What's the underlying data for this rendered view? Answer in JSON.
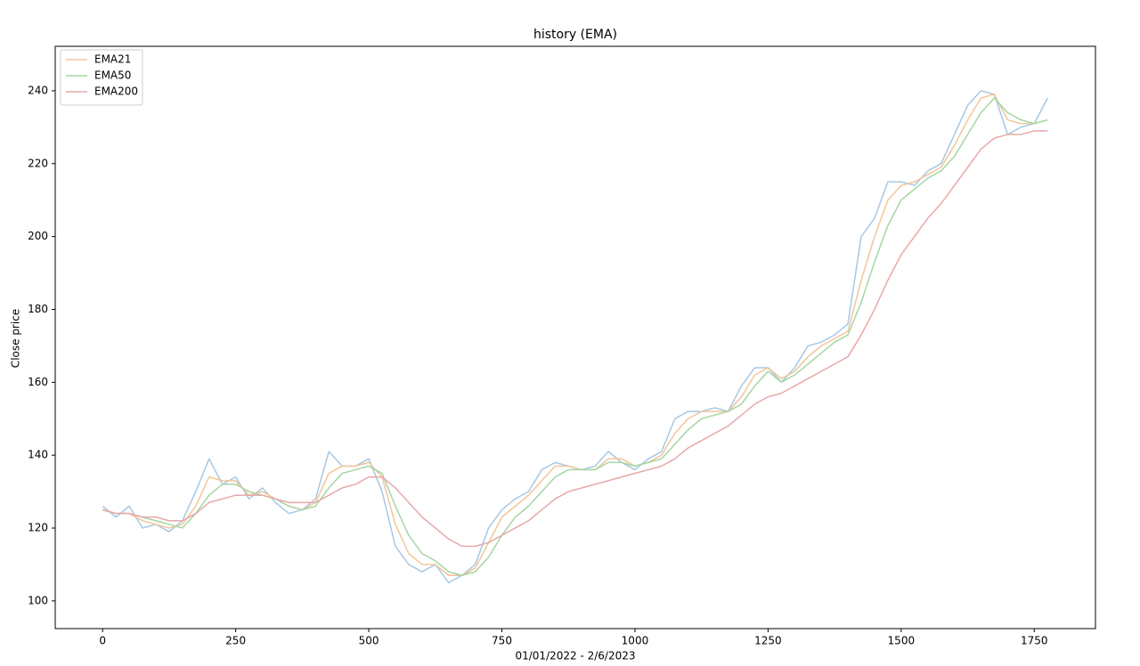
{
  "chart_data": {
    "type": "line",
    "title": "history (EMA)",
    "x_label": "01/01/2022 - 2/6/2023",
    "y_label": "Close price",
    "x": [
      0,
      25,
      50,
      75,
      100,
      125,
      150,
      175,
      200,
      225,
      250,
      275,
      300,
      325,
      350,
      375,
      400,
      425,
      450,
      475,
      500,
      525,
      550,
      575,
      600,
      625,
      650,
      675,
      700,
      725,
      750,
      775,
      800,
      825,
      850,
      875,
      900,
      925,
      950,
      975,
      1000,
      1025,
      1050,
      1075,
      1100,
      1125,
      1150,
      1175,
      1200,
      1225,
      1250,
      1275,
      1300,
      1325,
      1350,
      1375,
      1400,
      1425,
      1450,
      1475,
      1500,
      1525,
      1550,
      1575,
      1600,
      1625,
      1650,
      1675,
      1700,
      1725,
      1750,
      1775
    ],
    "series": [
      {
        "color": "#a6c8e4",
        "values": [
          126,
          123,
          126,
          120,
          121,
          119,
          122,
          130,
          139,
          132,
          134,
          128,
          131,
          127,
          124,
          125,
          128,
          141,
          137,
          137,
          139,
          130,
          115,
          110,
          108,
          110,
          105,
          107,
          110,
          120,
          125,
          128,
          130,
          136,
          138,
          137,
          136,
          137,
          141,
          138,
          136,
          139,
          141,
          150,
          152,
          152,
          153,
          152,
          159,
          164,
          164,
          160,
          164,
          170,
          171,
          173,
          176,
          200,
          205,
          215,
          215,
          214,
          218,
          220,
          228,
          236,
          240,
          239,
          228,
          230,
          231,
          238
        ]
      },
      {
        "name": "EMA21",
        "color": "#f3c599",
        "values": [
          125,
          124,
          124,
          122,
          121,
          120,
          121,
          126,
          134,
          133,
          133,
          129,
          130,
          128,
          126,
          125,
          127,
          135,
          137,
          137,
          138,
          134,
          121,
          113,
          110,
          110,
          107,
          107,
          109,
          116,
          123,
          126,
          129,
          133,
          137,
          137,
          136,
          136,
          139,
          139,
          137,
          138,
          140,
          146,
          150,
          152,
          152,
          152,
          156,
          162,
          164,
          161,
          163,
          167,
          170,
          172,
          174,
          188,
          200,
          210,
          214,
          215,
          217,
          219,
          225,
          232,
          238,
          239,
          232,
          231,
          231,
          232
        ]
      },
      {
        "name": "EMA50",
        "color": "#a5d6a5",
        "values": [
          125,
          124,
          124,
          123,
          122,
          121,
          120,
          124,
          129,
          132,
          132,
          130,
          129,
          128,
          126,
          125,
          126,
          131,
          135,
          136,
          137,
          135,
          126,
          118,
          113,
          111,
          108,
          107,
          108,
          112,
          118,
          123,
          126,
          130,
          134,
          136,
          136,
          136,
          138,
          138,
          137,
          138,
          139,
          143,
          147,
          150,
          151,
          152,
          154,
          159,
          163,
          160,
          162,
          165,
          168,
          171,
          173,
          182,
          193,
          203,
          210,
          213,
          216,
          218,
          222,
          228,
          234,
          238,
          234,
          232,
          231,
          232
        ]
      },
      {
        "name": "EMA200",
        "color": "#e8a8a8",
        "values": [
          125,
          124,
          124,
          123,
          123,
          122,
          122,
          124,
          127,
          128,
          129,
          129,
          129,
          128,
          127,
          127,
          127,
          129,
          131,
          132,
          134,
          134,
          131,
          127,
          123,
          120,
          117,
          115,
          115,
          116,
          118,
          120,
          122,
          125,
          128,
          130,
          131,
          132,
          133,
          134,
          135,
          136,
          137,
          139,
          142,
          144,
          146,
          148,
          151,
          154,
          156,
          157,
          159,
          161,
          163,
          165,
          167,
          173,
          180,
          188,
          195,
          200,
          205,
          209,
          214,
          219,
          224,
          227,
          228,
          228,
          229,
          229
        ]
      }
    ],
    "xlim": [
      -89,
      1865
    ],
    "ylim": [
      92.4,
      252.2
    ],
    "xticks": [
      0,
      250,
      500,
      750,
      1000,
      1250,
      1500,
      1750
    ],
    "yticks": [
      100,
      120,
      140,
      160,
      180,
      200,
      220,
      240
    ],
    "legend": "upper left"
  }
}
